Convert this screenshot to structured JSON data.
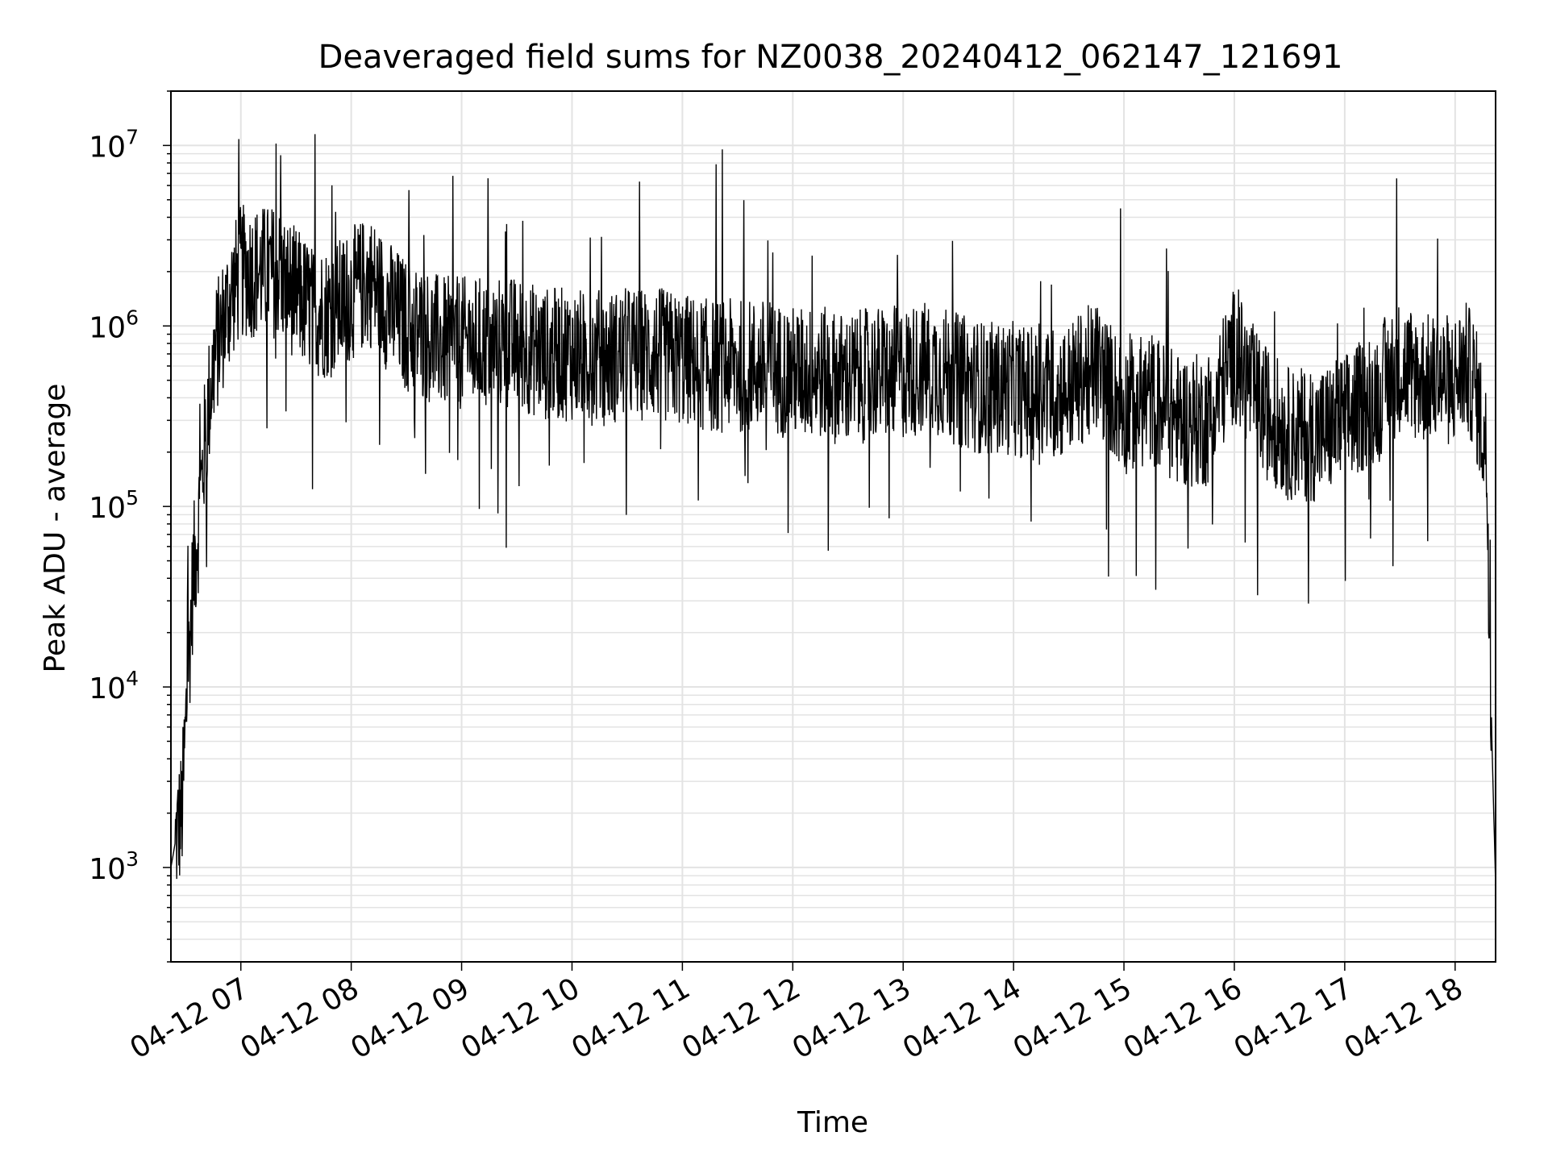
{
  "chart_data": {
    "type": "line",
    "title": "Deaveraged field sums for NZ0038_20240412_062147_121691",
    "xlabel": "Time",
    "ylabel": "Peak ADU - average",
    "yscale": "log",
    "ylim": [
      300,
      20000000
    ],
    "xlim": [
      "2024-04-12 06:22",
      "2024-04-12 18:22"
    ],
    "grid": "major and minor, light gray",
    "legend": "none",
    "line_color": "#000000",
    "x_ticks": [
      "2024-04-12 07:00",
      "2024-04-12 08:00",
      "2024-04-12 09:00",
      "2024-04-12 10:00",
      "2024-04-12 11:00",
      "2024-04-12 12:00",
      "2024-04-12 13:00",
      "2024-04-12 14:00",
      "2024-04-12 15:00",
      "2024-04-12 16:00",
      "2024-04-12 17:00",
      "2024-04-12 18:00"
    ],
    "x_tick_labels": [
      "04-12 07",
      "04-12 08",
      "04-12 09",
      "04-12 10",
      "04-12 11",
      "04-12 12",
      "04-12 13",
      "04-12 14",
      "04-12 15",
      "04-12 16",
      "04-12 17",
      "04-12 18"
    ],
    "y_ticks": [
      {
        "value": 1000,
        "base": "10",
        "exp": "3"
      },
      {
        "value": 10000,
        "base": "10",
        "exp": "4"
      },
      {
        "value": 100000,
        "base": "10",
        "exp": "5"
      },
      {
        "value": 1000000,
        "base": "10",
        "exp": "6"
      },
      {
        "value": 10000000,
        "base": "10",
        "exp": "7"
      }
    ],
    "series": [
      {
        "x": [
          "2024-04-12 06:22",
          "2024-04-12 06:25",
          "2024-04-12 06:28",
          "2024-04-12 06:31",
          "2024-04-12 06:34",
          "2024-04-12 06:37",
          "2024-04-12 06:40",
          "2024-04-12 06:43",
          "2024-04-12 06:46",
          "2024-04-12 06:50",
          "2024-04-12 06:55",
          "2024-04-12 07:00",
          "2024-04-12 07:10",
          "2024-04-12 07:20",
          "2024-04-12 07:30",
          "2024-04-12 07:40",
          "2024-04-12 07:50",
          "2024-04-12 08:00",
          "2024-04-12 08:10",
          "2024-04-12 08:20",
          "2024-04-12 08:30",
          "2024-04-12 08:40",
          "2024-04-12 08:50",
          "2024-04-12 09:00",
          "2024-04-12 09:15",
          "2024-04-12 09:30",
          "2024-04-12 09:45",
          "2024-04-12 10:00",
          "2024-04-12 10:15",
          "2024-04-12 10:30",
          "2024-04-12 10:45",
          "2024-04-12 11:00",
          "2024-04-12 11:15",
          "2024-04-12 11:30",
          "2024-04-12 11:45",
          "2024-04-12 12:00",
          "2024-04-12 12:15",
          "2024-04-12 12:30",
          "2024-04-12 12:45",
          "2024-04-12 13:00",
          "2024-04-12 13:15",
          "2024-04-12 13:30",
          "2024-04-12 13:45",
          "2024-04-12 14:00",
          "2024-04-12 14:15",
          "2024-04-12 14:30",
          "2024-04-12 14:45",
          "2024-04-12 15:00",
          "2024-04-12 15:15",
          "2024-04-12 15:30",
          "2024-04-12 15:45",
          "2024-04-12 16:00",
          "2024-04-12 16:15",
          "2024-04-12 16:30",
          "2024-04-12 16:45",
          "2024-04-12 17:00",
          "2024-04-12 17:15",
          "2024-04-12 17:30",
          "2024-04-12 17:45",
          "2024-04-12 18:00",
          "2024-04-12 18:05",
          "2024-04-12 18:10",
          "2024-04-12 18:14",
          "2024-04-12 18:17",
          "2024-04-12 18:20",
          "2024-04-12 18:22"
        ],
        "values": [
          1000,
          1500,
          2000,
          10000,
          40000,
          80000,
          200000,
          400000,
          700000,
          1000000,
          1500000,
          2000000,
          2000000,
          2000000,
          1500000,
          1200000,
          1200000,
          1500000,
          1800000,
          1300000,
          1000000,
          900000,
          800000,
          800000,
          800000,
          800000,
          700000,
          700000,
          650000,
          700000,
          700000,
          650000,
          600000,
          600000,
          600000,
          550000,
          550000,
          500000,
          550000,
          550000,
          600000,
          500000,
          450000,
          450000,
          400000,
          450000,
          600000,
          350000,
          400000,
          300000,
          300000,
          700000,
          350000,
          250000,
          250000,
          300000,
          400000,
          600000,
          500000,
          500000,
          600000,
          500000,
          300000,
          200000,
          5000,
          800
        ]
      }
    ]
  }
}
